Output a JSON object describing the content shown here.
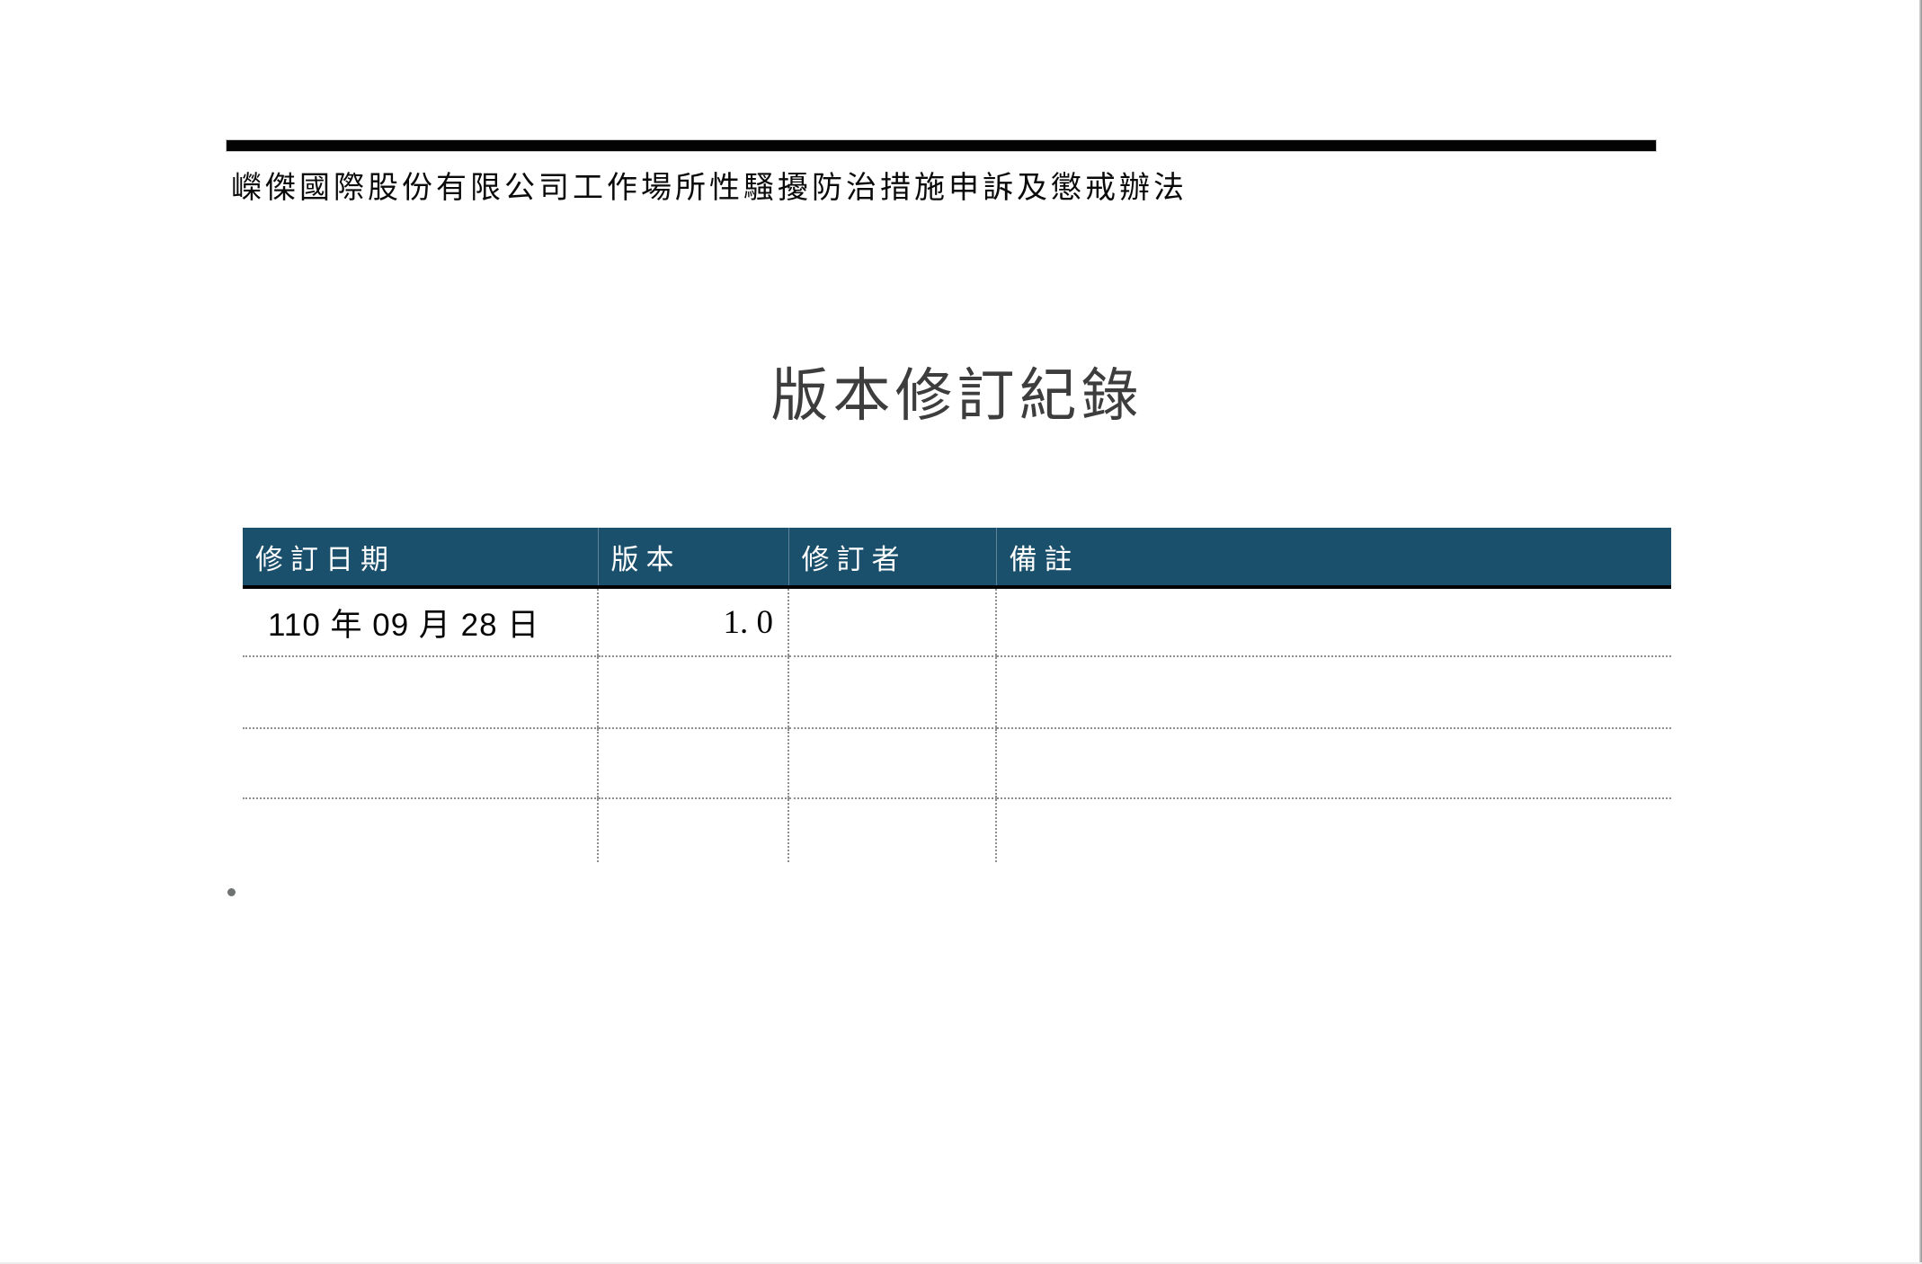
{
  "page": {
    "doc_header": "嶸傑國際股份有限公司工作場所性騷擾防治措施申訴及懲戒辦法",
    "title": "版本修訂紀錄"
  },
  "table": {
    "columns": [
      {
        "label": "修訂日期"
      },
      {
        "label": "版本"
      },
      {
        "label": "修訂者"
      },
      {
        "label": "備註"
      }
    ],
    "rows": [
      {
        "cells": [
          "110 年 09 月 28 日",
          "1. 0",
          "",
          ""
        ]
      },
      {
        "cells": [
          "",
          "",
          "",
          ""
        ]
      },
      {
        "cells": [
          "",
          "",
          "",
          ""
        ]
      },
      {
        "cells": [
          "",
          "",
          "",
          ""
        ]
      }
    ]
  },
  "icons": {
    "list_bullet": "filled-circle"
  },
  "colors": {
    "table_header_bg": "#1B506D",
    "table_header_text": "#FFFFFF",
    "header_divider": "#000000",
    "top_rule": "#030303",
    "title_text": "#3D3D3D",
    "dotted_border": "#8F8F8F",
    "bullet": "#6F7372",
    "page_edge": "#8F8F8F"
  }
}
